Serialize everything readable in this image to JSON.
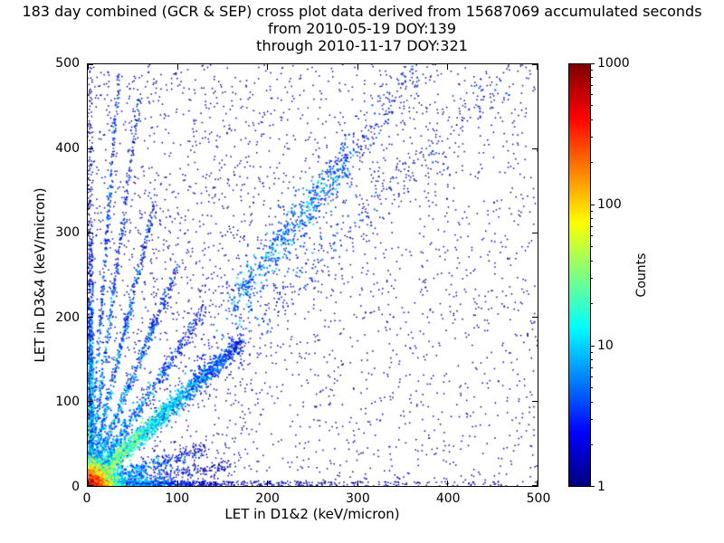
{
  "chart_data": {
    "type": "scatter",
    "title": "183 day combined (GCR & SEP) cross plot data derived from 15687069 accumulated seconds",
    "subtitle": [
      "from 2010-05-19 DOY:139",
      "through 2010-11-17 DOY:321"
    ],
    "xlabel": "LET in D1&2 (keV/micron)",
    "ylabel": "LET in D3&4 (keV/micron)",
    "xlim": [
      0,
      500
    ],
    "ylim": [
      0,
      500
    ],
    "xticks": [
      "0",
      "100",
      "200",
      "300",
      "400",
      "500"
    ],
    "yticks": [
      "0",
      "100",
      "200",
      "300",
      "400",
      "500"
    ],
    "grid": false,
    "legend": "none",
    "colorbar": {
      "label": "Counts",
      "scale": "log10",
      "range": [
        1,
        1000
      ],
      "ticks": [
        "1",
        "10",
        "100",
        "1000"
      ],
      "colormap": "jet"
    },
    "description": "2D density cross plot of coincident LET in detector pairs; hot core (~1000 counts, red) at origin, bands hugging both axes, strong correlated diagonal band y~x out to ~160 keV/micron, fan of steeper rays from the origin, secondary diagonal cluster near (200-290, 270-390), sparse single-count blue points over the full 0-500 range",
    "seed": 20101117,
    "features": [
      {
        "kind": "uniform",
        "n": 2300,
        "x": [
          1,
          500
        ],
        "y": [
          1,
          500
        ],
        "count": 1
      },
      {
        "kind": "uniform",
        "n": 500,
        "x": [
          1,
          180
        ],
        "y": [
          1,
          500
        ],
        "count": 1
      },
      {
        "kind": "edge_h",
        "n": 900,
        "ymax": 6,
        "xscale": 60,
        "peak": 50,
        "falloff": 35
      },
      {
        "kind": "edge_h",
        "n": 350,
        "ymax": 5,
        "xscale": 300,
        "peak": 2,
        "falloff": 400
      },
      {
        "kind": "edge_v",
        "n": 1000,
        "xmax": 6,
        "yscale": 120,
        "peak": 35,
        "falloff": 90
      },
      {
        "kind": "edge_v",
        "n": 300,
        "xmax": 5,
        "yscale": 350,
        "peak": 2,
        "falloff": 500
      },
      {
        "kind": "ray",
        "n": 1900,
        "slope": 1.0,
        "min": 2,
        "max": 170,
        "spread": 6,
        "peak": 45,
        "falloff": 55,
        "bias": 1.7
      },
      {
        "kind": "ray",
        "n": 420,
        "slope": 1.05,
        "min": 120,
        "max": 490,
        "spread": 16,
        "peak": 2.5,
        "falloff": 600,
        "bias": 1.3
      },
      {
        "kind": "ray",
        "n": 420,
        "slope": 0.33,
        "min": 4,
        "max": 130,
        "spread": 5,
        "peak": 12,
        "falloff": 55,
        "bias": 1.5
      },
      {
        "kind": "ray",
        "n": 320,
        "slope": 0.15,
        "min": 4,
        "max": 160,
        "spread": 4,
        "peak": 10,
        "falloff": 60,
        "bias": 1.5
      },
      {
        "kind": "ray",
        "n": 520,
        "slope": 1.6,
        "min": 4,
        "max": 130,
        "spread": 5,
        "peak": 10,
        "falloff": 70,
        "bias": 1.5
      },
      {
        "kind": "ray",
        "n": 450,
        "slope": 2.6,
        "min": 3,
        "max": 100,
        "spread": 4,
        "peak": 9,
        "falloff": 60,
        "bias": 1.5
      },
      {
        "kind": "ray",
        "n": 400,
        "slope": 4.5,
        "min": 3,
        "max": 75,
        "spread": 3.5,
        "peak": 7,
        "falloff": 50,
        "bias": 1.4
      },
      {
        "kind": "ray",
        "n": 330,
        "slope": 8,
        "min": 2,
        "max": 58,
        "spread": 3,
        "peak": 6,
        "falloff": 45,
        "bias": 1.3
      },
      {
        "kind": "ray",
        "n": 280,
        "slope": 14,
        "min": 1,
        "max": 35,
        "spread": 2.5,
        "peak": 5,
        "falloff": 40,
        "bias": 1.2
      },
      {
        "kind": "ray",
        "n": 520,
        "slope": 1.35,
        "min": 160,
        "max": 290,
        "spread": 12,
        "peak": 5,
        "falloff": 900,
        "bias": 1.0
      },
      {
        "kind": "ray",
        "n": 160,
        "slope": 1.35,
        "min": 280,
        "max": 365,
        "spread": 14,
        "peak": 2,
        "falloff": 900,
        "bias": 1.0
      },
      {
        "kind": "cluster",
        "n": 4200,
        "sx": 7,
        "sy": 7,
        "peak": 1100,
        "falloff": 8.5
      }
    ]
  }
}
